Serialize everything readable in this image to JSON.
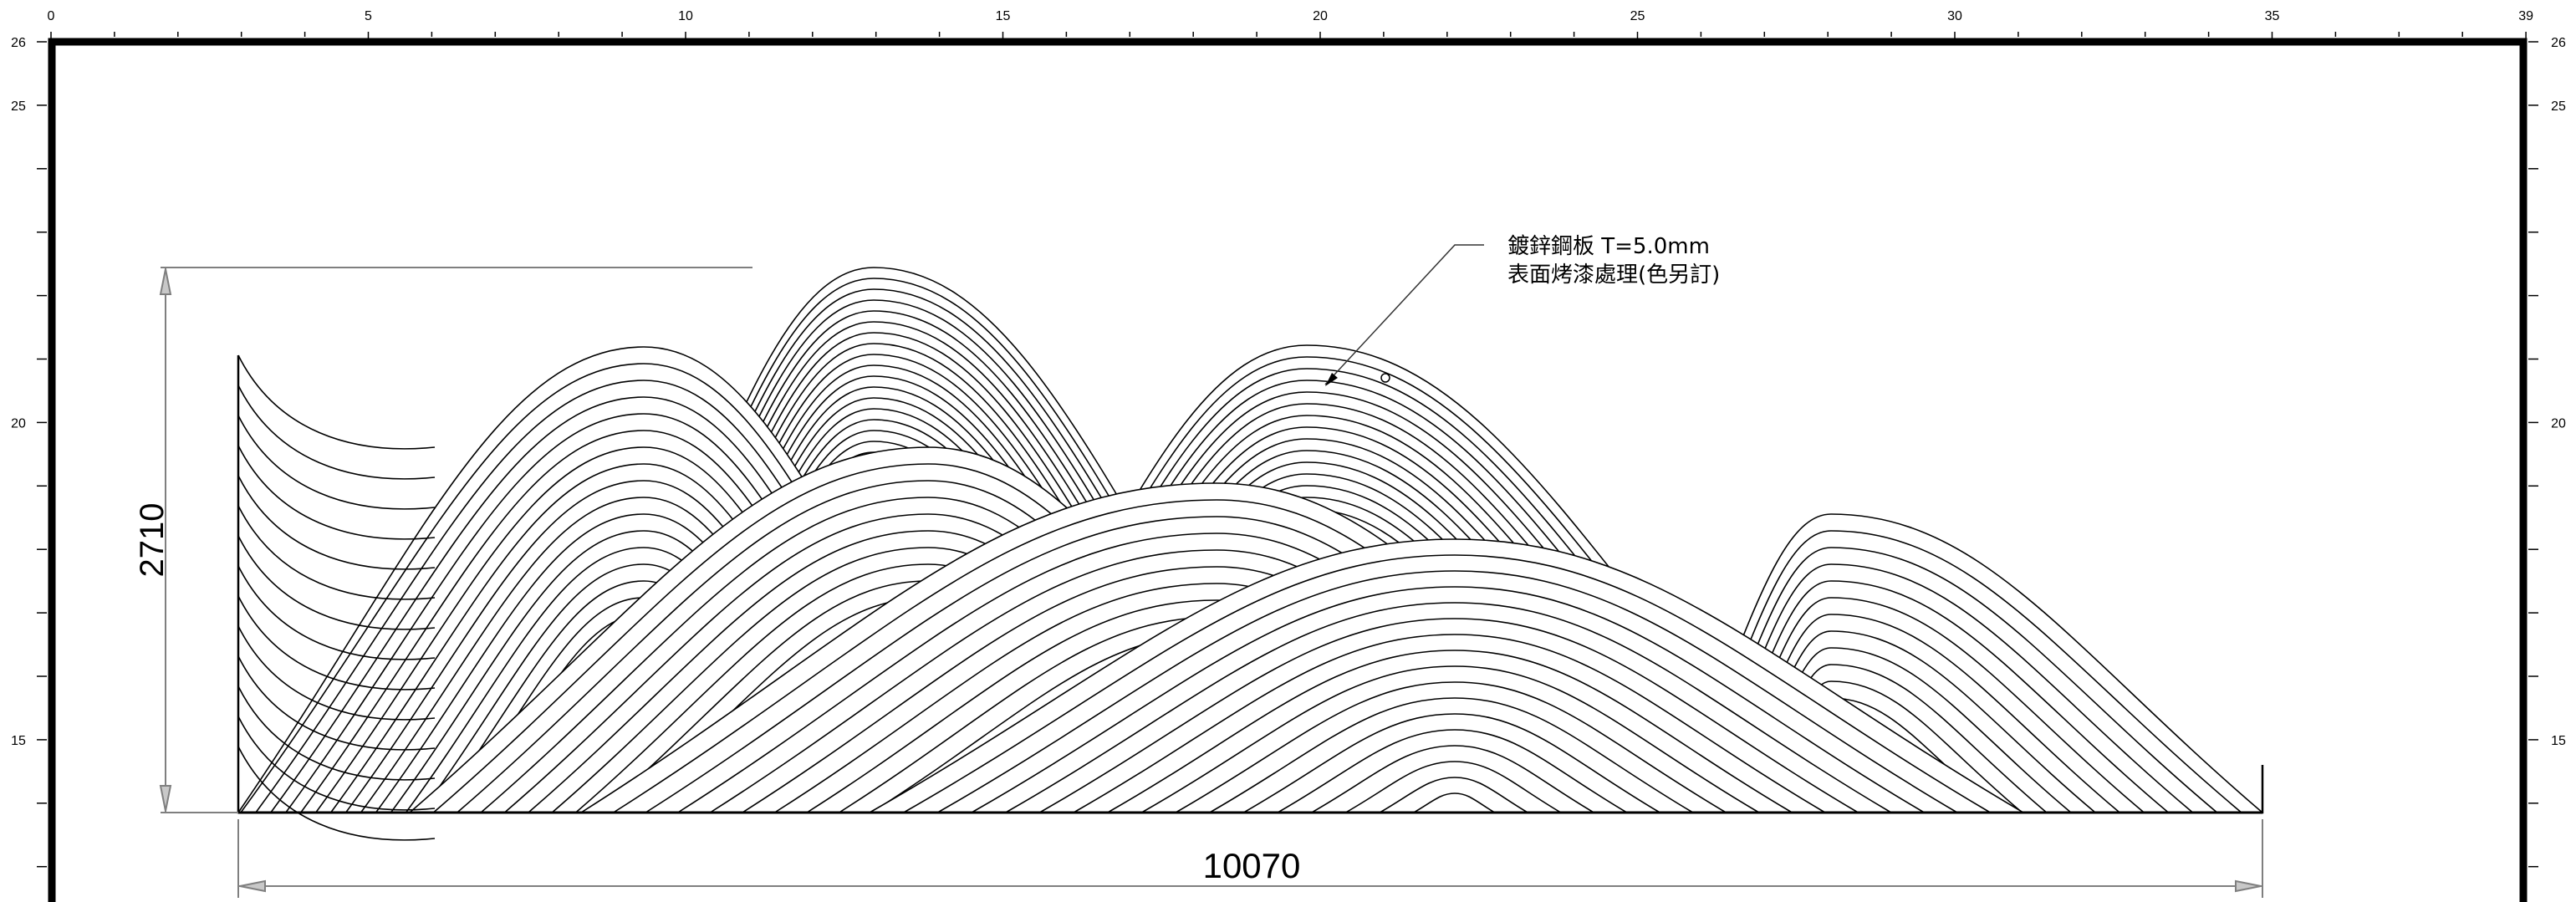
{
  "ruler": {
    "top_labels": [
      "0",
      "5",
      "10",
      "15",
      "20",
      "25",
      "30",
      "35",
      "39"
    ],
    "left_labels": [
      "26",
      "25",
      "20",
      "15"
    ],
    "right_labels": [
      "26",
      "25",
      "20",
      "15"
    ]
  },
  "dimensions": {
    "height_value": "2710",
    "width_value": "10070"
  },
  "annotation": {
    "line1": "鍍鋅鋼板 T=5.0mm",
    "line2": "表面烤漆處理(色另訂)"
  },
  "colors": {
    "ink": "#000000",
    "dim_line": "#7f7f7f",
    "background": "#ffffff"
  }
}
